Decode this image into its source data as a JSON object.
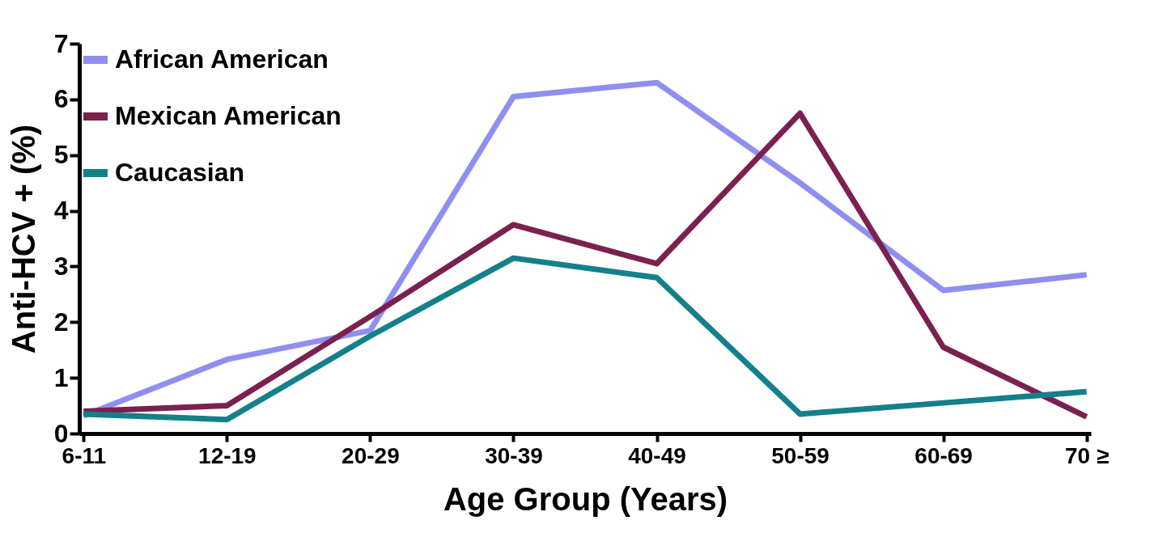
{
  "chart_data": {
    "type": "line",
    "xlabel": "Age Group (Years)",
    "ylabel": "Anti-HCV + (%)",
    "categories": [
      "6-11",
      "12-19",
      "20-29",
      "30-39",
      "40-49",
      "50-59",
      "60-69",
      "70 ≥"
    ],
    "ylim": [
      0,
      7
    ],
    "yticks": [
      0,
      1,
      2,
      3,
      4,
      5,
      6,
      7
    ],
    "grid": false,
    "legend": "top left",
    "marker": "none",
    "line_style": "solid",
    "series": [
      {
        "name": "African American",
        "color": "#8f8ff0",
        "values": [
          0.32,
          1.33,
          1.85,
          6.05,
          6.3,
          4.5,
          2.57,
          2.85
        ]
      },
      {
        "name": "Mexican American",
        "color": "#7a2150",
        "values": [
          0.4,
          0.5,
          2.1,
          3.75,
          3.05,
          5.75,
          1.55,
          0.3
        ]
      },
      {
        "name": "Caucasian",
        "color": "#13808a",
        "values": [
          0.35,
          0.25,
          1.75,
          3.15,
          2.8,
          0.35,
          0.55,
          0.75
        ]
      }
    ]
  }
}
